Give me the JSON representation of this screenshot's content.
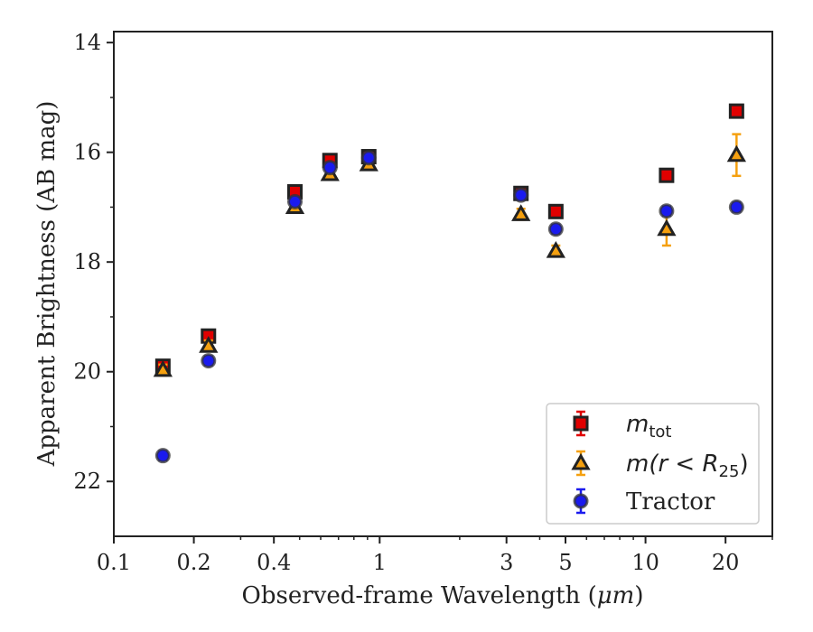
{
  "chart_data": {
    "type": "scatter",
    "title": "",
    "xlabel_prefix": "Observed-frame Wavelength (",
    "xlabel_unit": "μm",
    "xlabel_suffix": ")",
    "ylabel": "Apparent Brightness (AB mag)",
    "x_scale": "log",
    "xlim": [
      0.1,
      30
    ],
    "ylim": [
      23,
      13.8
    ],
    "y_inverted": true,
    "x_ticks": [
      {
        "value": 0.1,
        "label": "0.1"
      },
      {
        "value": 0.2,
        "label": "0.2"
      },
      {
        "value": 0.4,
        "label": "0.4"
      },
      {
        "value": 1,
        "label": "1"
      },
      {
        "value": 3,
        "label": "3"
      },
      {
        "value": 5,
        "label": "5"
      },
      {
        "value": 10,
        "label": "10"
      },
      {
        "value": 20,
        "label": "20"
      }
    ],
    "x_minor_ticks": [
      0.3,
      0.5,
      0.6,
      0.7,
      0.8,
      0.9,
      2,
      4,
      6,
      7,
      8,
      9,
      30
    ],
    "y_ticks": [
      14,
      16,
      18,
      20,
      22
    ],
    "y_minor_ticks": [
      15,
      17,
      19,
      21
    ],
    "legend_position": "lower-right",
    "series": [
      {
        "name": "m_tot",
        "marker": "square",
        "color": "#e00000",
        "edge_color": "#222222",
        "error_color": "#e00000",
        "points": [
          {
            "x": 0.153,
            "y": 19.9,
            "err": 0.1
          },
          {
            "x": 0.227,
            "y": 19.35,
            "err": 0.1
          },
          {
            "x": 0.48,
            "y": 16.72,
            "err": 0.1
          },
          {
            "x": 0.65,
            "y": 16.15,
            "err": 0.1
          },
          {
            "x": 0.91,
            "y": 16.08,
            "err": 0.1
          },
          {
            "x": 3.4,
            "y": 16.75,
            "err": 0.08
          },
          {
            "x": 4.6,
            "y": 17.08,
            "err": 0.08
          },
          {
            "x": 12.0,
            "y": 16.42,
            "err": 0.1
          },
          {
            "x": 22.0,
            "y": 15.25,
            "err": 0.1
          }
        ]
      },
      {
        "name": "m(r<R25)",
        "marker": "triangle",
        "color": "#f5a00f",
        "edge_color": "#222222",
        "error_color": "#f5a00f",
        "points": [
          {
            "x": 0.153,
            "y": 19.97,
            "err": 0.1
          },
          {
            "x": 0.227,
            "y": 19.53,
            "err": 0.1
          },
          {
            "x": 0.48,
            "y": 17.0,
            "err": 0.1
          },
          {
            "x": 0.65,
            "y": 16.4,
            "err": 0.1
          },
          {
            "x": 0.91,
            "y": 16.22,
            "err": 0.1
          },
          {
            "x": 3.4,
            "y": 17.13,
            "err": 0.1
          },
          {
            "x": 4.6,
            "y": 17.8,
            "err": 0.1
          },
          {
            "x": 12.0,
            "y": 17.4,
            "err": 0.3
          },
          {
            "x": 22.0,
            "y": 16.05,
            "err": 0.38
          }
        ]
      },
      {
        "name": "Tractor",
        "marker": "circle",
        "color": "#1a1aee",
        "edge_color": "#333333",
        "error_color": "#1a1aee",
        "points": [
          {
            "x": 0.153,
            "y": 21.53,
            "err": 0.08
          },
          {
            "x": 0.227,
            "y": 19.8,
            "err": 0.08
          },
          {
            "x": 0.48,
            "y": 16.9,
            "err": 0.08
          },
          {
            "x": 0.65,
            "y": 16.28,
            "err": 0.08
          },
          {
            "x": 0.91,
            "y": 16.1,
            "err": 0.08
          },
          {
            "x": 3.4,
            "y": 16.78,
            "err": 0.08
          },
          {
            "x": 4.6,
            "y": 17.4,
            "err": 0.08
          },
          {
            "x": 12.0,
            "y": 17.07,
            "err": 0.08
          },
          {
            "x": 22.0,
            "y": 17.0,
            "err": 0.08
          }
        ]
      }
    ],
    "legend": {
      "entries": [
        {
          "series": 0,
          "base": "m",
          "sub": "tot"
        },
        {
          "series": 1,
          "text": "m(r < R",
          "sub": "25",
          "close": ")"
        },
        {
          "series": 2,
          "text": "Tractor"
        }
      ]
    }
  }
}
